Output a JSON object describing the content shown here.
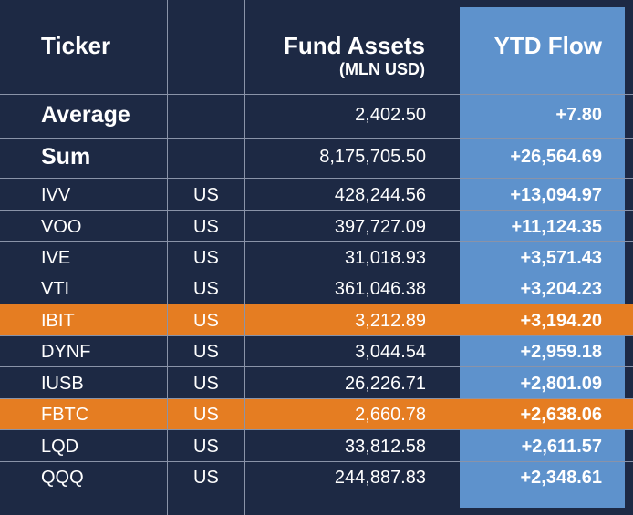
{
  "colors": {
    "background": "#1d2944",
    "ytd_column": "#5e92cc",
    "highlight": "#e57d22",
    "gridline": "#8a93a8",
    "text": "#ffffff"
  },
  "chart_data": {
    "type": "table",
    "columns": {
      "ticker": "Ticker",
      "country": "",
      "fund_assets": "Fund Assets",
      "fund_assets_unit": "(MLN USD)",
      "ytd_flow": "YTD Flow"
    },
    "summary": [
      {
        "label": "Average",
        "fund_assets": "2,402.50",
        "ytd_flow": "+7.80"
      },
      {
        "label": "Sum",
        "fund_assets": "8,175,705.50",
        "ytd_flow": "+26,564.69"
      }
    ],
    "rows": [
      {
        "ticker": "IVV",
        "country": "US",
        "fund_assets": "428,244.56",
        "ytd_flow": "+13,094.97",
        "highlighted": false
      },
      {
        "ticker": "VOO",
        "country": "US",
        "fund_assets": "397,727.09",
        "ytd_flow": "+11,124.35",
        "highlighted": false
      },
      {
        "ticker": "IVE",
        "country": "US",
        "fund_assets": "31,018.93",
        "ytd_flow": "+3,571.43",
        "highlighted": false
      },
      {
        "ticker": "VTI",
        "country": "US",
        "fund_assets": "361,046.38",
        "ytd_flow": "+3,204.23",
        "highlighted": false
      },
      {
        "ticker": "IBIT",
        "country": "US",
        "fund_assets": "3,212.89",
        "ytd_flow": "+3,194.20",
        "highlighted": true
      },
      {
        "ticker": "DYNF",
        "country": "US",
        "fund_assets": "3,044.54",
        "ytd_flow": "+2,959.18",
        "highlighted": false
      },
      {
        "ticker": "IUSB",
        "country": "US",
        "fund_assets": "26,226.71",
        "ytd_flow": "+2,801.09",
        "highlighted": false
      },
      {
        "ticker": "FBTC",
        "country": "US",
        "fund_assets": "2,660.78",
        "ytd_flow": "+2,638.06",
        "highlighted": true
      },
      {
        "ticker": "LQD",
        "country": "US",
        "fund_assets": "33,812.58",
        "ytd_flow": "+2,611.57",
        "highlighted": false
      },
      {
        "ticker": "QQQ",
        "country": "US",
        "fund_assets": "244,887.83",
        "ytd_flow": "+2,348.61",
        "highlighted": false
      }
    ]
  }
}
